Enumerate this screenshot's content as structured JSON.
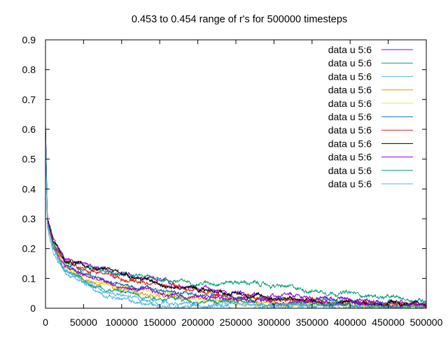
{
  "chart_data": {
    "type": "line",
    "title": "0.453 to 0.454 range of r's for 500000 timesteps",
    "xlabel": "",
    "ylabel": "",
    "xlim": [
      0,
      500000
    ],
    "ylim": [
      0,
      0.9
    ],
    "x_ticks": [
      0,
      50000,
      100000,
      150000,
      200000,
      250000,
      300000,
      350000,
      400000,
      450000,
      500000
    ],
    "x_tick_labels": [
      "0",
      "50000",
      "100000",
      "150000",
      "200000",
      "250000",
      "300000",
      "350000",
      "400000",
      "450000",
      "500000"
    ],
    "y_ticks": [
      0,
      0.1,
      0.2,
      0.3,
      0.4,
      0.5,
      0.6,
      0.7,
      0.8,
      0.9
    ],
    "y_tick_labels": [
      "0",
      "0.1",
      "0.2",
      "0.3",
      "0.4",
      "0.5",
      "0.6",
      "0.7",
      "0.8",
      "0.9"
    ],
    "grid": false,
    "legend_position": "top-right",
    "x": [
      0,
      2500,
      10000,
      25000,
      50000,
      75000,
      100000,
      125000,
      150000,
      175000,
      200000,
      250000,
      300000,
      350000,
      400000,
      450000,
      500000
    ],
    "series": [
      {
        "name": "data u 5:6",
        "color": "#9400d3",
        "values": [
          0.62,
          0.3,
          0.23,
          0.17,
          0.15,
          0.13,
          0.115,
          0.1,
          0.09,
          0.08,
          0.07,
          0.05,
          0.04,
          0.035,
          0.03,
          0.02,
          0.015
        ]
      },
      {
        "name": "data u 5:6",
        "color": "#009e73",
        "values": [
          0.6,
          0.29,
          0.22,
          0.15,
          0.13,
          0.12,
          0.11,
          0.105,
          0.1,
          0.09,
          0.085,
          0.09,
          0.075,
          0.06,
          0.05,
          0.035,
          0.025
        ]
      },
      {
        "name": "data u 5:6",
        "color": "#56b4e9",
        "values": [
          0.58,
          0.27,
          0.19,
          0.12,
          0.08,
          0.05,
          0.03,
          0.015,
          0.008,
          0.005,
          0.004,
          0.003,
          0.002,
          0.002,
          0.002,
          0.002,
          0.002
        ]
      },
      {
        "name": "data u 5:6",
        "color": "#e69f00",
        "values": [
          0.6,
          0.28,
          0.21,
          0.14,
          0.1,
          0.08,
          0.06,
          0.05,
          0.04,
          0.035,
          0.03,
          0.025,
          0.02,
          0.018,
          0.015,
          0.01,
          0.008
        ]
      },
      {
        "name": "data u 5:6",
        "color": "#f0e442",
        "values": [
          0.6,
          0.28,
          0.2,
          0.14,
          0.11,
          0.09,
          0.07,
          0.06,
          0.05,
          0.04,
          0.03,
          0.02,
          0.015,
          0.012,
          0.01,
          0.008,
          0.006
        ]
      },
      {
        "name": "data u 5:6",
        "color": "#0072b2",
        "values": [
          0.61,
          0.29,
          0.22,
          0.15,
          0.12,
          0.1,
          0.08,
          0.07,
          0.06,
          0.05,
          0.045,
          0.035,
          0.03,
          0.025,
          0.02,
          0.015,
          0.01
        ]
      },
      {
        "name": "data u 5:6",
        "color": "#e51e10",
        "values": [
          0.61,
          0.29,
          0.22,
          0.16,
          0.13,
          0.12,
          0.1,
          0.09,
          0.08,
          0.07,
          0.06,
          0.04,
          0.03,
          0.025,
          0.02,
          0.015,
          0.012
        ]
      },
      {
        "name": "data u 5:6",
        "color": "#000000",
        "values": [
          0.62,
          0.3,
          0.23,
          0.16,
          0.14,
          0.13,
          0.12,
          0.1,
          0.08,
          0.07,
          0.065,
          0.05,
          0.035,
          0.025,
          0.02,
          0.015,
          0.01
        ]
      },
      {
        "name": "data u 5:6",
        "color": "#9400d3",
        "values": [
          0.61,
          0.29,
          0.21,
          0.14,
          0.11,
          0.09,
          0.07,
          0.06,
          0.05,
          0.045,
          0.04,
          0.03,
          0.025,
          0.02,
          0.015,
          0.012,
          0.01
        ]
      },
      {
        "name": "data u 5:6",
        "color": "#009e73",
        "values": [
          0.6,
          0.28,
          0.2,
          0.13,
          0.09,
          0.07,
          0.055,
          0.045,
          0.035,
          0.03,
          0.025,
          0.02,
          0.015,
          0.012,
          0.01,
          0.008,
          0.006
        ]
      },
      {
        "name": "data u 5:6",
        "color": "#56b4e9",
        "values": [
          0.59,
          0.28,
          0.2,
          0.13,
          0.09,
          0.06,
          0.04,
          0.03,
          0.02,
          0.015,
          0.012,
          0.01,
          0.008,
          0.006,
          0.005,
          0.004,
          0.004
        ]
      }
    ]
  }
}
